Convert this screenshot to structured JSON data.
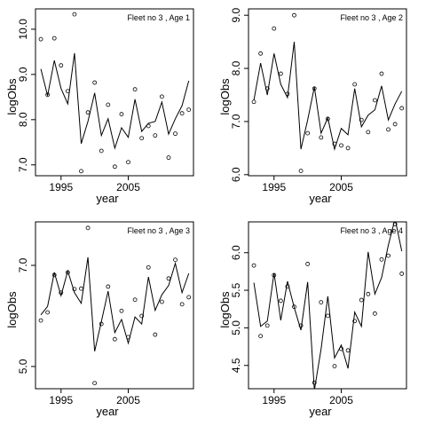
{
  "chart_data": [
    {
      "type": "line",
      "title": "Fleet no 3 , Age 1",
      "xlabel": "year",
      "ylabel": "logObs",
      "x": [
        1992,
        1993,
        1994,
        1995,
        1996,
        1997,
        1998,
        1999,
        2000,
        2001,
        2002,
        2003,
        2004,
        2005,
        2006,
        2007,
        2008,
        2009,
        2010,
        2011,
        2012,
        2013,
        2014
      ],
      "series": [
        {
          "mode": "markers",
          "color": "#000000",
          "values": [
            9.78,
            8.55,
            9.8,
            9.2,
            8.63,
            10.33,
            6.86,
            8.16,
            8.82,
            7.31,
            8.33,
            6.96,
            8.12,
            7.06,
            8.67,
            7.59,
            7.86,
            7.65,
            8.51,
            7.16,
            7.69,
            8.14,
            8.22
          ]
        },
        {
          "mode": "line",
          "color": "#000000",
          "values": [
            9.12,
            8.53,
            9.31,
            8.69,
            8.35,
            9.47,
            7.47,
            7.96,
            8.59,
            7.65,
            8.02,
            7.37,
            7.82,
            7.61,
            8.45,
            7.74,
            7.92,
            7.96,
            8.39,
            7.68,
            8.02,
            8.31,
            8.86
          ]
        }
      ],
      "xlim": [
        1991.2,
        2014.7
      ],
      "ylim": [
        6.76,
        10.45
      ],
      "xticks": [
        1995,
        2005
      ],
      "yticks": [
        {
          "value": 7,
          "label": "7.0"
        },
        {
          "value": 8,
          "label": "8.0"
        },
        {
          "value": 9,
          "label": "9.0"
        },
        {
          "value": 10,
          "label": "10.0"
        }
      ]
    },
    {
      "type": "line",
      "title": "Fleet no 3 , Age 2",
      "xlabel": "year",
      "ylabel": "logObs",
      "x": [
        1992,
        1993,
        1994,
        1995,
        1996,
        1997,
        1998,
        1999,
        2000,
        2001,
        2002,
        2003,
        2004,
        2005,
        2006,
        2007,
        2008,
        2009,
        2010,
        2011,
        2012,
        2013,
        2014
      ],
      "series": [
        {
          "mode": "markers",
          "color": "#000000",
          "values": [
            7.37,
            8.28,
            7.62,
            8.75,
            7.9,
            7.52,
            9.0,
            6.07,
            6.78,
            7.62,
            6.7,
            7.05,
            6.58,
            6.55,
            6.5,
            7.7,
            7.03,
            6.8,
            7.4,
            7.9,
            6.85,
            6.95,
            7.25
          ]
        },
        {
          "mode": "line",
          "color": "#000000",
          "values": [
            7.4,
            8.1,
            7.5,
            8.28,
            7.7,
            7.45,
            8.5,
            6.48,
            7.03,
            7.65,
            6.78,
            7.07,
            6.48,
            6.87,
            6.75,
            7.62,
            6.9,
            7.12,
            7.22,
            7.67,
            7.03,
            7.33,
            7.57
          ]
        }
      ],
      "xlim": [
        1991.2,
        2014.7
      ],
      "ylim": [
        5.98,
        9.12
      ],
      "xticks": [
        1995,
        2005
      ],
      "yticks": [
        {
          "value": 6,
          "label": "6.0"
        },
        {
          "value": 7,
          "label": "7.0"
        },
        {
          "value": 8,
          "label": "8.0"
        },
        {
          "value": 9,
          "label": "9.0"
        }
      ]
    },
    {
      "type": "line",
      "title": "Fleet no 3 , Age 3",
      "xlabel": "year",
      "ylabel": "logObs",
      "x": [
        1992,
        1993,
        1994,
        1995,
        1996,
        1997,
        1998,
        1999,
        2000,
        2001,
        2002,
        2003,
        2004,
        2005,
        2006,
        2007,
        2008,
        2009,
        2010,
        2011,
        2012,
        2013,
        2014
      ],
      "series": [
        {
          "mode": "markers",
          "color": "#000000",
          "values": [
            5.91,
            6.07,
            6.81,
            6.46,
            6.86,
            6.53,
            6.54,
            7.74,
            4.67,
            5.84,
            6.58,
            5.54,
            6.1,
            5.58,
            6.32,
            6.0,
            6.96,
            5.63,
            6.28,
            6.74,
            7.11,
            6.23,
            6.37
          ]
        },
        {
          "mode": "line",
          "color": "#000000",
          "values": [
            6.02,
            6.19,
            6.86,
            6.4,
            6.89,
            6.46,
            6.25,
            7.16,
            5.3,
            5.89,
            6.49,
            5.67,
            5.93,
            5.46,
            5.98,
            5.84,
            6.77,
            6.11,
            6.42,
            6.6,
            7.04,
            6.46,
            6.84
          ]
        }
      ],
      "xlim": [
        1991.2,
        2014.7
      ],
      "ylim": [
        4.56,
        7.86
      ],
      "xticks": [
        1995,
        2005
      ],
      "yticks": [
        {
          "value": 5,
          "label": "5.0"
        },
        {
          "value": 7,
          "label": "7.0"
        }
      ]
    },
    {
      "type": "line",
      "title": "Fleet no 3 , Age 4",
      "xlabel": "year",
      "ylabel": "logObs",
      "x": [
        1992,
        1993,
        1994,
        1995,
        1996,
        1997,
        1998,
        1999,
        2000,
        2001,
        2002,
        2003,
        2004,
        2005,
        2006,
        2007,
        2008,
        2009,
        2010,
        2011,
        2012,
        2013,
        2014
      ],
      "series": [
        {
          "mode": "markers",
          "color": "#000000",
          "values": [
            5.83,
            4.89,
            5.03,
            5.7,
            5.36,
            5.55,
            5.28,
            5.03,
            5.85,
            4.27,
            5.34,
            5.16,
            4.49,
            4.72,
            4.7,
            5.09,
            5.37,
            5.45,
            5.19,
            5.91,
            5.96,
            6.38,
            5.72
          ]
        },
        {
          "mode": "line",
          "color": "#000000",
          "values": [
            5.6,
            5.02,
            5.09,
            5.73,
            5.1,
            5.62,
            5.27,
            4.97,
            5.61,
            4.17,
            4.72,
            5.42,
            4.6,
            4.77,
            4.46,
            5.21,
            5.02,
            6.01,
            5.45,
            5.67,
            6.1,
            6.45,
            6.02
          ]
        }
      ],
      "xlim": [
        1991.2,
        2014.7
      ],
      "ylim": [
        4.19,
        6.41
      ],
      "xticks": [
        1995,
        2005
      ],
      "yticks": [
        4.5,
        {
          "value": 5,
          "label": "5.0"
        },
        5.5,
        {
          "value": 6,
          "label": "6.0"
        }
      ]
    }
  ]
}
